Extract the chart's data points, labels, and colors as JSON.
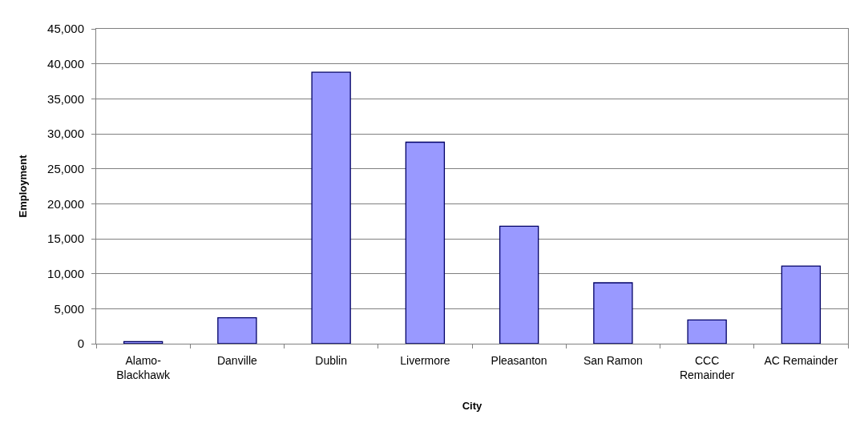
{
  "chart_data": {
    "type": "bar",
    "xlabel": "City",
    "ylabel": "Employment",
    "categories": [
      "Alamo-\nBlackhawk",
      "Danville",
      "Dublin",
      "Livermore",
      "Pleasanton",
      "San Ramon",
      "CCC\nRemainder",
      "AC Remainder"
    ],
    "values": [
      300,
      3700,
      38800,
      28800,
      16800,
      8700,
      3400,
      11100
    ],
    "color": "#9999ff",
    "ylim": [
      0,
      45000
    ],
    "yticks": [
      {
        "value": 0,
        "label": "0"
      },
      {
        "value": 5000,
        "label": "5,000"
      },
      {
        "value": 10000,
        "label": "10,000"
      },
      {
        "value": 15000,
        "label": "15,000"
      },
      {
        "value": 20000,
        "label": "20,000"
      },
      {
        "value": 25000,
        "label": "25,000"
      },
      {
        "value": 30000,
        "label": "30,000"
      },
      {
        "value": 35000,
        "label": "35,000"
      },
      {
        "value": 40000,
        "label": "40,000"
      },
      {
        "value": 45000,
        "label": "45,000"
      }
    ],
    "grid": "y"
  }
}
